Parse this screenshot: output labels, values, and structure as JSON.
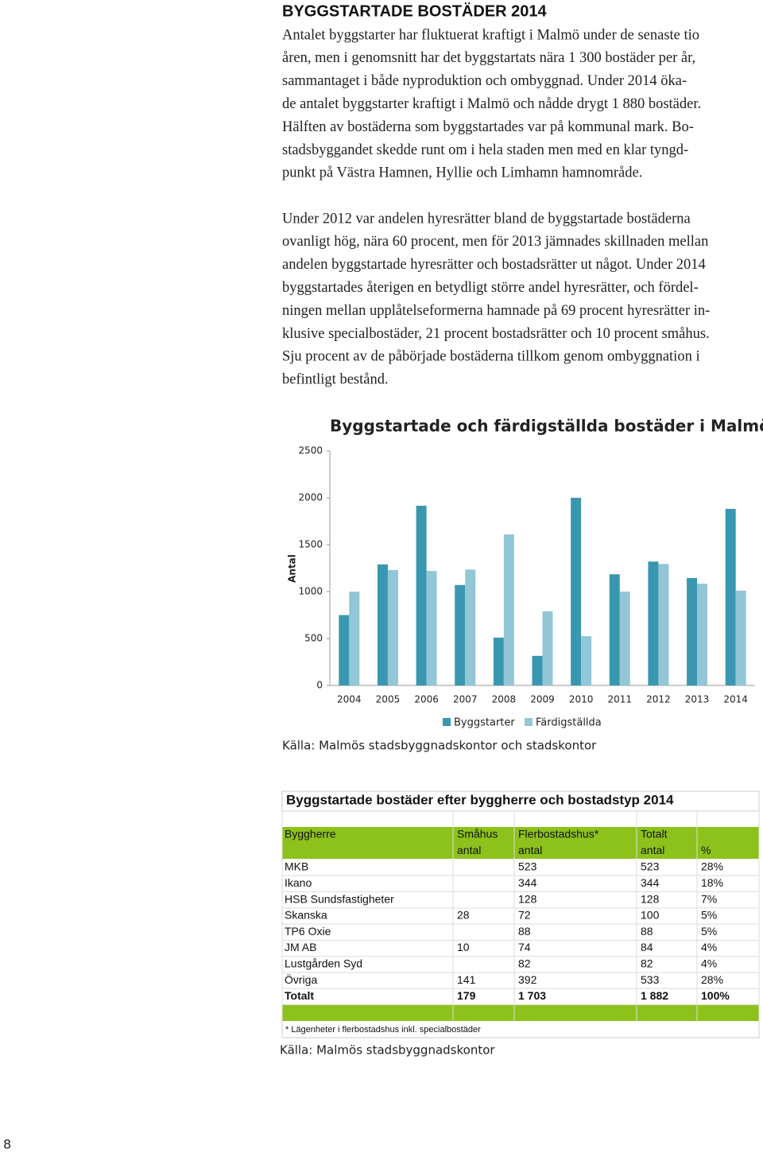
{
  "heading": "BYGGSTARTADE BOSTÄDER 2014",
  "paragraphs": [
    [
      "Antalet byggstarter har fluktuerat kraftigt i Malmö under de senaste tio",
      "åren, men i genomsnitt har det byggstartats nära 1 300 bostäder per år,",
      "sammantaget i både nyproduktion och ombyggnad. Under 2014 öka-",
      "de antalet byggstarter kraftigt i Malmö och nådde drygt 1 880 bostäder.",
      "Hälften av bostäderna som byggstartades var på kommunal mark. Bo-",
      "stadsbyggandet skedde runt om i hela staden men med en klar tyngd-",
      "punkt på Västra Hamnen, Hyllie och Limhamn hamnområde."
    ],
    [
      "Under 2012 var andelen hyresrätter bland de byggstartade bostäderna",
      "ovanligt hög, nära 60 procent, men för 2013 jämnades skillnaden mellan",
      "andelen byggstartade hyresrätter och bostadsrätter ut något. Under 2014",
      "byggstartades återigen en betydligt större andel hyresrätter, och fördel-",
      "ningen mellan upplåtelseformerna hamnade på 69 procent hyresrätter in-",
      "klusive specialbostäder, 21 procent bostadsrätter och 10 procent småhus.",
      "Sju procent av de påbörjade bostäderna tillkom genom ombyggnation i",
      "befintligt bestånd."
    ]
  ],
  "chart_data": {
    "type": "bar",
    "title": "Byggstartade och färdigställda bostäder i Malmö",
    "y_label": "Antal",
    "categories": [
      "2004",
      "2005",
      "2006",
      "2007",
      "2008",
      "2009",
      "2010",
      "2011",
      "2012",
      "2013",
      "2014"
    ],
    "series": [
      {
        "name": "Byggstarter",
        "color": "#3a97b0",
        "values": [
          750,
          1290,
          1915,
          1070,
          510,
          315,
          2000,
          1185,
          1320,
          1145,
          1882
        ]
      },
      {
        "name": "Färdigställda",
        "color": "#93c6d6",
        "values": [
          1000,
          1230,
          1220,
          1235,
          1610,
          790,
          525,
          1000,
          1295,
          1085,
          1010
        ]
      }
    ],
    "ylim": [
      0,
      2500
    ],
    "yticks": [
      0,
      500,
      1000,
      1500,
      2000,
      2500
    ],
    "legend": "bottom"
  },
  "chart_source": "Källa: Malmös stadsbyggnadskontor och stadskontor",
  "table": {
    "title": "Byggstartade bostäder efter byggherre och bostadstyp 2014",
    "header": [
      [
        "Byggherre",
        "Småhus",
        "Flerbostadshus*",
        "Totalt",
        null
      ],
      [
        null,
        "antal",
        "antal",
        "antal",
        "%"
      ]
    ],
    "rows": [
      [
        "MKB",
        null,
        "523",
        "523",
        "28%"
      ],
      [
        "Ikano",
        null,
        "344",
        "344",
        "18%"
      ],
      [
        "HSB Sundsfastigheter",
        null,
        "128",
        "128",
        "7%"
      ],
      [
        "Skanska",
        "28",
        "72",
        "100",
        "5%"
      ],
      [
        "TP6 Oxie",
        null,
        "88",
        "88",
        "5%"
      ],
      [
        "JM AB",
        "10",
        "74",
        "84",
        "4%"
      ],
      [
        "Lustgården Syd",
        null,
        "82",
        "82",
        "4%"
      ],
      [
        "Övriga",
        "141",
        "392",
        "533",
        "28%"
      ],
      [
        "Totalt",
        "179",
        "1 703",
        "1 882",
        "100%"
      ]
    ],
    "footnote": "* Lägenheter i flerbostadshus inkl. specialbostäder"
  },
  "table_source": "Källa: Malmös stadsbyggnadskontor",
  "page_number": "8"
}
